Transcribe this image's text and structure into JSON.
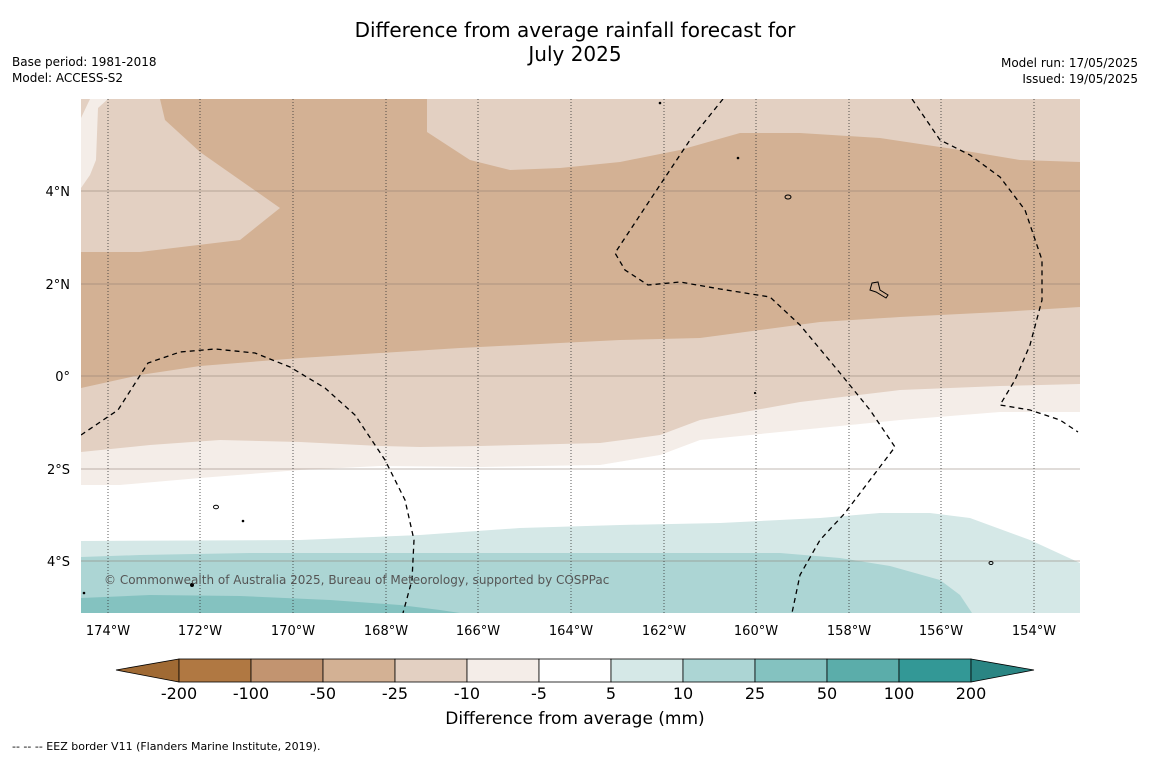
{
  "title": {
    "line1": "Difference from average rainfall forecast for",
    "line2": "July 2025"
  },
  "meta": {
    "base_period": "Base period: 1981-2018",
    "model": "Model: ACCESS-S2",
    "model_run": "Model run: 17/05/2025",
    "issued": "Issued: 19/05/2025"
  },
  "map": {
    "lat_labels": [
      "4°N",
      "2°N",
      "0°",
      "2°S",
      "4°S"
    ],
    "lon_labels": [
      "174°W",
      "172°W",
      "170°W",
      "168°W",
      "166°W",
      "164°W",
      "162°W",
      "160°W",
      "158°W",
      "156°W",
      "154°W"
    ],
    "copyright": "© Commonwealth of Australia 2025, Bureau of Meteorology, supported by COSPPac",
    "colors": {
      "c_m200": "#a06a34",
      "c_m100": "#b07842",
      "c_m50": "#c29470",
      "c_m25": "#d3b194",
      "c_m10": "#e3d0c2",
      "c_m5": "#f4ede8",
      "c_0": "#ffffff",
      "c_5": "#d5e8e7",
      "c_10": "#acd5d4",
      "c_25": "#84c2c0",
      "c_50": "#5badaa",
      "c_100": "#339896",
      "c_200": "#2a8583"
    }
  },
  "colorbar": {
    "ticks": [
      "-200",
      "-100",
      "-50",
      "-25",
      "-10",
      "-5",
      "5",
      "10",
      "25",
      "50",
      "100",
      "200"
    ],
    "title": "Difference from average (mm)"
  },
  "footer": {
    "note": "--  --  -- EEZ border V11 (Flanders Marine Institute, 2019)."
  }
}
